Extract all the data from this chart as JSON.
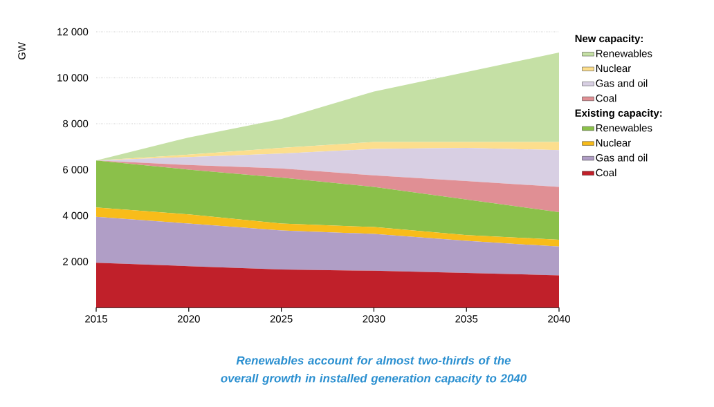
{
  "chart_data": {
    "type": "area",
    "stacked": true,
    "ylabel": "GW",
    "x": [
      2015,
      2020,
      2025,
      2030,
      2035,
      2040
    ],
    "xlim": [
      2015,
      2040
    ],
    "xticks": [
      2015,
      2020,
      2025,
      2030,
      2035,
      2040
    ],
    "ylim": [
      0,
      12000
    ],
    "yticks": [
      {
        "value": 2000,
        "label": "2 000"
      },
      {
        "value": 4000,
        "label": "4 000"
      },
      {
        "value": 6000,
        "label": "6 000"
      },
      {
        "value": 8000,
        "label": "8 000"
      },
      {
        "value": 10000,
        "label": "10 000"
      },
      {
        "value": 12000,
        "label": "12 000"
      }
    ],
    "grid": "y",
    "legend": "right",
    "series": [
      {
        "name": "Coal",
        "color": "#c0202a",
        "values": [
          1950,
          1800,
          1650,
          1600,
          1500,
          1400
        ]
      },
      {
        "name": "Gas and oil",
        "color": "#b09ec6",
        "values": [
          2000,
          1850,
          1700,
          1600,
          1400,
          1250
        ]
      },
      {
        "name": "Nuclear",
        "color": "#f8bc1a",
        "values": [
          400,
          400,
          300,
          300,
          250,
          300
        ]
      },
      {
        "name": "Renewables",
        "color": "#8bc04a",
        "values": [
          2050,
          1950,
          2000,
          1750,
          1550,
          1200
        ]
      },
      {
        "name": "Coal",
        "color": "#e08f94",
        "values": [
          0,
          200,
          400,
          500,
          800,
          1100
        ]
      },
      {
        "name": "Gas and oil",
        "color": "#d8cfe3",
        "values": [
          0,
          350,
          650,
          1150,
          1450,
          1600
        ]
      },
      {
        "name": "Nuclear",
        "color": "#fcde8d",
        "values": [
          0,
          100,
          250,
          300,
          250,
          350
        ]
      },
      {
        "name": "Renewables",
        "color": "#c5e0a5",
        "values": [
          0,
          750,
          1250,
          2200,
          3050,
          3900
        ]
      }
    ],
    "annotations": [
      "New capacity:",
      "Existing capacity:",
      "Renewables account for almost two-thirds of the overall growth in installed generation capacity to 2040"
    ]
  }
}
